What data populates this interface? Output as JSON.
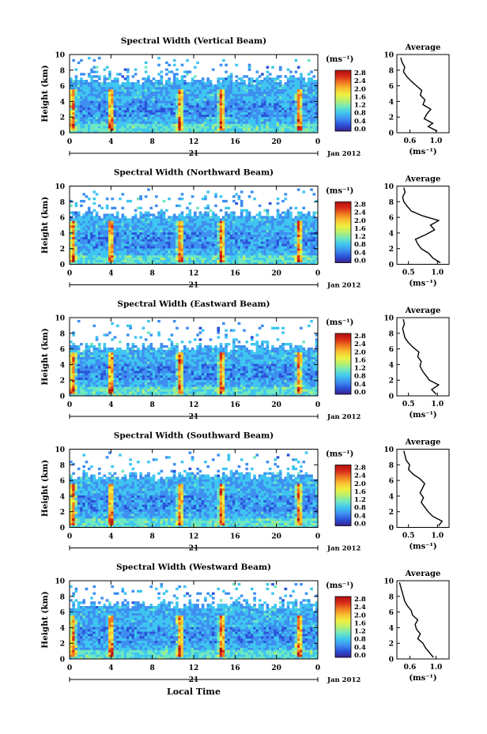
{
  "figure": {
    "x_title": "Local Time",
    "date_label": "Jan 2012",
    "day_label": "21",
    "avg_title": "Average",
    "unit": "(ms⁻¹)"
  },
  "colorbar": {
    "ticks": [
      "2.8",
      "2.4",
      "2.0",
      "1.6",
      "1.2",
      "0.8",
      "0.4",
      "0.0"
    ],
    "colors": [
      "#3a1f8c",
      "#2a52d8",
      "#3f8ff0",
      "#3fc6f0",
      "#6fe8c0",
      "#b8f070",
      "#f0f040",
      "#f8c030",
      "#f07a20",
      "#d82a18",
      "#b01010"
    ]
  },
  "chart_data": [
    {
      "type": "heatmap",
      "title": "Spectral Width (Vertical Beam)",
      "xlabel": "",
      "ylabel": "Height (km)",
      "xlim": [
        0,
        24
      ],
      "ylim": [
        0,
        10
      ],
      "x_ticks": [
        "0",
        "4",
        "8",
        "12",
        "16",
        "20",
        "0"
      ],
      "y_ticks": [
        "0",
        "2",
        "4",
        "6",
        "8",
        "10"
      ],
      "colorbar_range": [
        0.0,
        2.8
      ],
      "echo_top_km": 6.8,
      "high_width_columns_hour": [
        0.3,
        4.0,
        10.7,
        14.7,
        22.2
      ],
      "average_profile": {
        "xlim": [
          0.4,
          1.2
        ],
        "x_ticks": [
          "0.6",
          "1.0"
        ],
        "y_ticks": [
          "0",
          "2",
          "4",
          "6",
          "8",
          "10"
        ],
        "height_km": [
          0.2,
          0.8,
          1.2,
          1.8,
          2.4,
          3.0,
          3.6,
          4.2,
          4.8,
          5.4,
          6.0,
          6.6,
          7.2,
          7.8,
          8.4,
          9.0,
          9.6
        ],
        "value": [
          1.02,
          0.88,
          0.95,
          0.82,
          0.86,
          0.92,
          0.8,
          0.83,
          0.76,
          0.78,
          0.7,
          0.62,
          0.55,
          0.5,
          0.52,
          0.48,
          0.46
        ]
      }
    },
    {
      "type": "heatmap",
      "title": "Spectral Width (Northward Beam)",
      "xlabel": "",
      "ylabel": "Height (km)",
      "xlim": [
        0,
        24
      ],
      "ylim": [
        0,
        10
      ],
      "x_ticks": [
        "0",
        "4",
        "8",
        "12",
        "16",
        "20",
        "0"
      ],
      "y_ticks": [
        "0",
        "2",
        "4",
        "6",
        "8",
        "10"
      ],
      "colorbar_range": [
        0.0,
        2.8
      ],
      "echo_top_km": 6.4,
      "high_width_columns_hour": [
        0.3,
        4.0,
        10.7,
        14.7,
        22.2
      ],
      "average_profile": {
        "xlim": [
          0.3,
          1.2
        ],
        "x_ticks": [
          "0.5",
          "1.0"
        ],
        "y_ticks": [
          "0",
          "2",
          "4",
          "6",
          "8",
          "10"
        ],
        "height_km": [
          0.2,
          0.8,
          1.4,
          2.0,
          2.6,
          3.2,
          3.8,
          4.4,
          5.0,
          5.6,
          6.2,
          6.8,
          7.4,
          8.0,
          8.6,
          9.2,
          9.8
        ],
        "value": [
          1.05,
          0.92,
          0.85,
          0.72,
          0.66,
          0.62,
          0.8,
          0.95,
          0.88,
          1.02,
          0.74,
          0.55,
          0.48,
          0.42,
          0.4,
          0.44,
          0.42
        ]
      }
    },
    {
      "type": "heatmap",
      "title": "Spectral Width (Eastward Beam)",
      "xlabel": "",
      "ylabel": "Height (km)",
      "xlim": [
        0,
        24
      ],
      "ylim": [
        0,
        10
      ],
      "x_ticks": [
        "0",
        "4",
        "8",
        "12",
        "16",
        "20",
        "0"
      ],
      "y_ticks": [
        "0",
        "2",
        "4",
        "6",
        "8",
        "10"
      ],
      "colorbar_range": [
        0.0,
        2.8
      ],
      "echo_top_km": 6.2,
      "high_width_columns_hour": [
        0.3,
        4.0,
        10.7,
        14.7,
        22.2
      ],
      "average_profile": {
        "xlim": [
          0.3,
          1.2
        ],
        "x_ticks": [
          "0.5",
          "1.0"
        ],
        "y_ticks": [
          "0",
          "2",
          "4",
          "6",
          "8",
          "10"
        ],
        "height_km": [
          0.2,
          0.8,
          1.4,
          2.0,
          2.6,
          3.2,
          3.8,
          4.4,
          5.0,
          5.6,
          6.2,
          6.8,
          7.4,
          8.0,
          8.6,
          9.2,
          9.8
        ],
        "value": [
          0.98,
          0.9,
          1.02,
          0.86,
          0.8,
          0.74,
          0.7,
          0.72,
          0.66,
          0.68,
          0.58,
          0.5,
          0.44,
          0.42,
          0.4,
          0.43,
          0.41
        ]
      }
    },
    {
      "type": "heatmap",
      "title": "Spectral Width (Southward Beam)",
      "xlabel": "",
      "ylabel": "Height (km)",
      "xlim": [
        0,
        24
      ],
      "ylim": [
        0,
        10
      ],
      "x_ticks": [
        "0",
        "4",
        "8",
        "12",
        "16",
        "20",
        "0"
      ],
      "y_ticks": [
        "0",
        "2",
        "4",
        "6",
        "8",
        "10"
      ],
      "colorbar_range": [
        0.0,
        2.8
      ],
      "echo_top_km": 6.6,
      "high_width_columns_hour": [
        0.3,
        4.0,
        10.7,
        14.7,
        22.2
      ],
      "average_profile": {
        "xlim": [
          0.3,
          1.2
        ],
        "x_ticks": [
          "0.5",
          "1.0"
        ],
        "y_ticks": [
          "0",
          "2",
          "4",
          "6",
          "8",
          "10"
        ],
        "height_km": [
          0.2,
          0.8,
          1.4,
          2.0,
          2.6,
          3.2,
          3.8,
          4.4,
          5.0,
          5.6,
          6.2,
          6.8,
          7.4,
          8.0,
          8.6,
          9.2,
          9.8
        ],
        "value": [
          1.02,
          1.08,
          0.92,
          0.84,
          0.78,
          0.72,
          0.76,
          0.7,
          0.74,
          0.78,
          0.7,
          0.58,
          0.5,
          0.52,
          0.46,
          0.44,
          0.42
        ]
      }
    },
    {
      "type": "heatmap",
      "title": "Spectral Width (Westward Beam)",
      "xlabel": "Local Time",
      "ylabel": "Height (km)",
      "xlim": [
        0,
        24
      ],
      "ylim": [
        0,
        10
      ],
      "x_ticks": [
        "0",
        "4",
        "8",
        "12",
        "16",
        "20",
        "0"
      ],
      "y_ticks": [
        "0",
        "2",
        "4",
        "6",
        "8",
        "10"
      ],
      "colorbar_range": [
        0.0,
        2.8
      ],
      "echo_top_km": 6.9,
      "high_width_columns_hour": [
        0.3,
        4.0,
        10.7,
        14.7,
        22.2
      ],
      "average_profile": {
        "xlim": [
          0.4,
          1.2
        ],
        "x_ticks": [
          "0.6",
          "1.0"
        ],
        "y_ticks": [
          "0",
          "2",
          "4",
          "6",
          "8",
          "10"
        ],
        "height_km": [
          0.2,
          0.8,
          1.4,
          2.0,
          2.6,
          3.2,
          3.8,
          4.4,
          5.0,
          5.6,
          6.2,
          6.8,
          7.4,
          8.0,
          8.6,
          9.2,
          9.8
        ],
        "value": [
          0.96,
          0.9,
          0.84,
          0.8,
          0.72,
          0.76,
          0.7,
          0.68,
          0.72,
          0.64,
          0.62,
          0.56,
          0.52,
          0.5,
          0.48,
          0.46,
          0.44
        ]
      }
    }
  ]
}
